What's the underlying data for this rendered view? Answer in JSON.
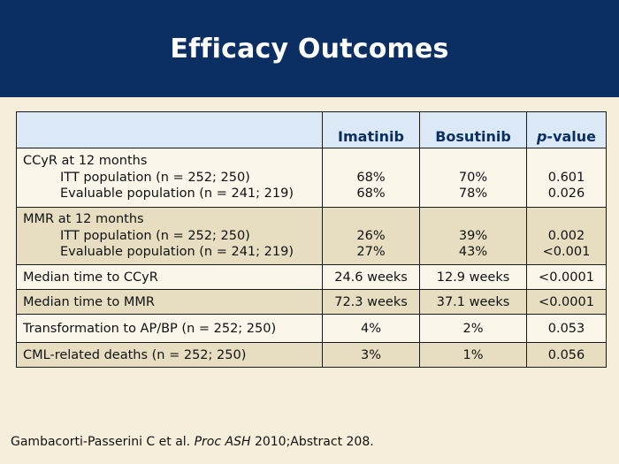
{
  "title": "Efficacy Outcomes",
  "columns": [
    "",
    "Imatinib",
    "Bosutinib",
    "p-value"
  ],
  "pvalue_header": {
    "italic": "p",
    "rest": "-value"
  },
  "rows": [
    {
      "label": "CCyR at 12 months",
      "sub": [
        "ITT population (n = 252; 250)",
        "Evaluable population (n = 241; 219)"
      ],
      "imatinib": [
        "68%",
        "68%"
      ],
      "bosutinib": [
        "70%",
        "78%"
      ],
      "pvalue": [
        "0.601",
        "0.026"
      ]
    },
    {
      "label": "MMR at 12 months",
      "sub": [
        "ITT population (n = 252; 250)",
        "Evaluable population (n = 241; 219)"
      ],
      "imatinib": [
        "26%",
        "27%"
      ],
      "bosutinib": [
        "39%",
        "43%"
      ],
      "pvalue": [
        "0.002",
        "<0.001"
      ]
    },
    {
      "label": "Median time to CCyR",
      "imatinib": "24.6 weeks",
      "bosutinib": "12.9 weeks",
      "pvalue": "<0.0001"
    },
    {
      "label": "Median time to MMR",
      "imatinib": "72.3 weeks",
      "bosutinib": "37.1 weeks",
      "pvalue": "<0.0001"
    },
    {
      "label": "Transformation to AP/BP (n = 252; 250)",
      "imatinib": "4%",
      "bosutinib": "2%",
      "pvalue": "0.053"
    },
    {
      "label": "CML-related deaths (n = 252; 250)",
      "imatinib": "3%",
      "bosutinib": "1%",
      "pvalue": "0.056"
    }
  ],
  "citation": {
    "authors": "Gambacorti-Passerini C et al.",
    "journal": "Proc ASH",
    "rest": "2010;Abstract 208."
  },
  "colors": {
    "header_bg": "#0b2f63",
    "slide_bg": "#f4eedb",
    "table_header_bg": "#dbe9f6",
    "row_dark": "#e7dec2",
    "row_light": "#faf6ea"
  }
}
